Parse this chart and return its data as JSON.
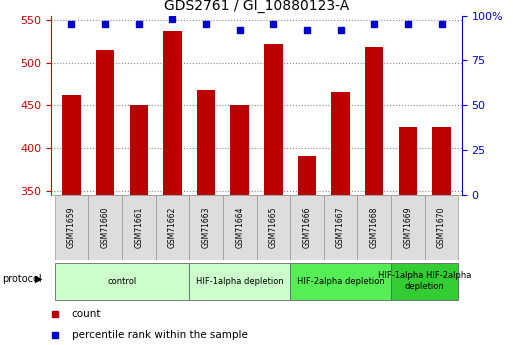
{
  "title": "GDS2761 / GI_10880123-A",
  "samples": [
    "GSM71659",
    "GSM71660",
    "GSM71661",
    "GSM71662",
    "GSM71663",
    "GSM71664",
    "GSM71665",
    "GSM71666",
    "GSM71667",
    "GSM71668",
    "GSM71669",
    "GSM71670"
  ],
  "counts": [
    462,
    515,
    450,
    537,
    468,
    450,
    522,
    390,
    465,
    518,
    425,
    425
  ],
  "percentile_ranks": [
    95,
    95,
    95,
    98,
    95,
    92,
    95,
    92,
    92,
    95,
    95,
    95
  ],
  "ylim_left": [
    345,
    555
  ],
  "ylim_right": [
    0,
    100
  ],
  "yticks_left": [
    350,
    400,
    450,
    500,
    550
  ],
  "yticks_right": [
    0,
    25,
    50,
    75,
    100
  ],
  "protocol_groups": [
    {
      "label": "control",
      "indices": [
        0,
        1,
        2,
        3
      ],
      "color": "#ccffcc"
    },
    {
      "label": "HIF-1alpha depletion",
      "indices": [
        4,
        5,
        6
      ],
      "color": "#ccffcc"
    },
    {
      "label": "HIF-2alpha depletion",
      "indices": [
        7,
        8,
        9
      ],
      "color": "#55ee55"
    },
    {
      "label": "HIF-1alpha HIF-2alpha\ndepletion",
      "indices": [
        10,
        11
      ],
      "color": "#33cc33"
    }
  ],
  "bar_color": "#bb0000",
  "dot_color": "#0000cc",
  "grid_color": "#888888",
  "tick_label_color_left": "#cc0000",
  "tick_label_color_right": "#0000cc",
  "sample_box_color": "#dddddd",
  "bar_width": 0.55,
  "background_color": "#ffffff"
}
